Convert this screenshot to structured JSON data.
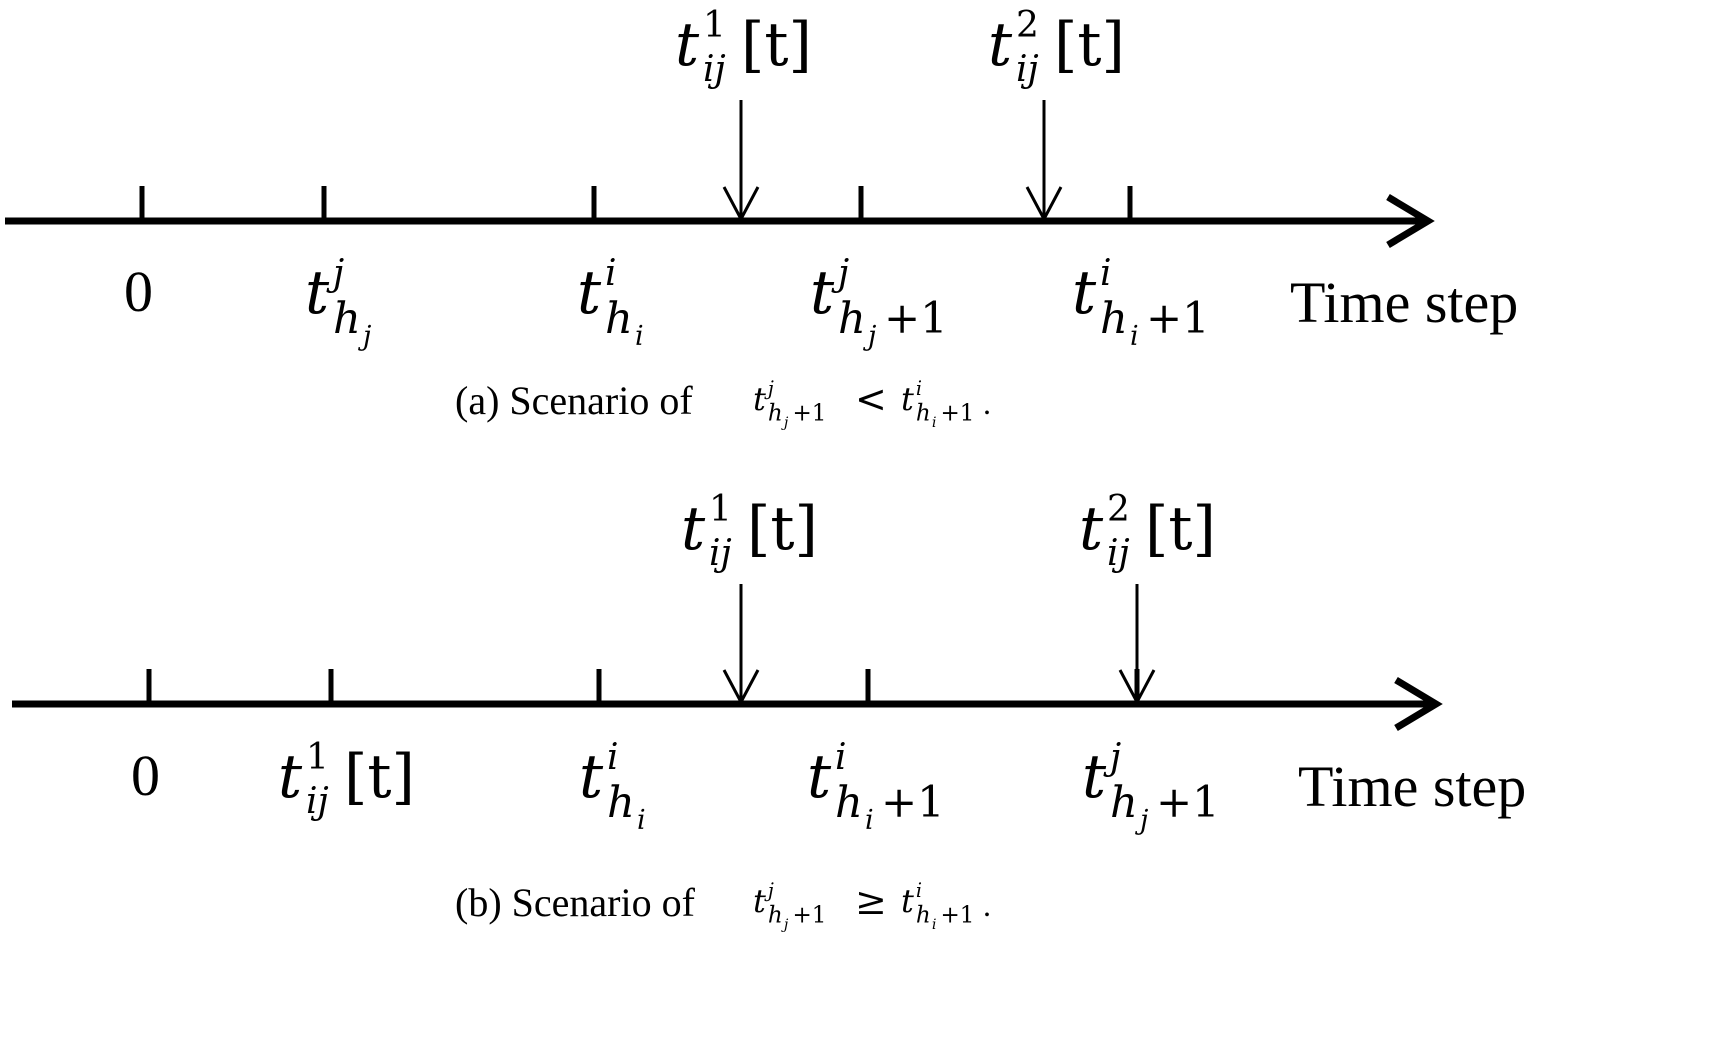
{
  "panels": [
    {
      "id": "a",
      "axis_label": "Time step",
      "caption": {
        "prefix": "(a) Scenario of",
        "lhs": {
          "base": "t",
          "sup": "j",
          "sub_var": "h",
          "sub_sub": "j",
          "sub_tail": "+1"
        },
        "relation": "<",
        "rhs": {
          "base": "t",
          "sup": "i",
          "sub_var": "h",
          "sub_sub": "i",
          "sub_tail": "+1"
        },
        "suffix": "."
      },
      "ticks": [
        {
          "kind": "plain",
          "text": "0"
        },
        {
          "kind": "sym",
          "base": "t",
          "sup": "j",
          "sub_var": "h",
          "sub_sub": "j",
          "sub_tail": ""
        },
        {
          "kind": "sym",
          "base": "t",
          "sup": "i",
          "sub_var": "h",
          "sub_sub": "i",
          "sub_tail": ""
        },
        {
          "kind": "sym",
          "base": "t",
          "sup": "j",
          "sub_var": "h",
          "sub_sub": "j",
          "sub_tail": "+1"
        },
        {
          "kind": "sym",
          "base": "t",
          "sup": "i",
          "sub_var": "h",
          "sub_sub": "i",
          "sub_tail": "+1"
        }
      ],
      "arrows": [
        {
          "base": "t",
          "sup": "1",
          "sub": "ij",
          "arg": "[t]"
        },
        {
          "base": "t",
          "sup": "2",
          "sub": "ij",
          "arg": "[t]"
        }
      ]
    },
    {
      "id": "b",
      "axis_label": "Time step",
      "caption": {
        "prefix": "(b) Scenario of",
        "lhs": {
          "base": "t",
          "sup": "j",
          "sub_var": "h",
          "sub_sub": "j",
          "sub_tail": "+1"
        },
        "relation": "≥",
        "rhs": {
          "base": "t",
          "sup": "i",
          "sub_var": "h",
          "sub_sub": "i",
          "sub_tail": "+1"
        },
        "suffix": "."
      },
      "ticks": [
        {
          "kind": "plain",
          "text": "0"
        },
        {
          "kind": "arg",
          "base": "t",
          "sup": "1",
          "sub": "ij",
          "arg": "[t]"
        },
        {
          "kind": "sym",
          "base": "t",
          "sup": "i",
          "sub_var": "h",
          "sub_sub": "i",
          "sub_tail": ""
        },
        {
          "kind": "sym",
          "base": "t",
          "sup": "i",
          "sub_var": "h",
          "sub_sub": "i",
          "sub_tail": "+1"
        },
        {
          "kind": "sym",
          "base": "t",
          "sup": "j",
          "sub_var": "h",
          "sub_sub": "j",
          "sub_tail": "+1"
        }
      ],
      "arrows": [
        {
          "base": "t",
          "sup": "1",
          "sub": "ij",
          "arg": "[t]"
        },
        {
          "base": "t",
          "sup": "2",
          "sub": "ij",
          "arg": "[t]"
        }
      ]
    }
  ]
}
